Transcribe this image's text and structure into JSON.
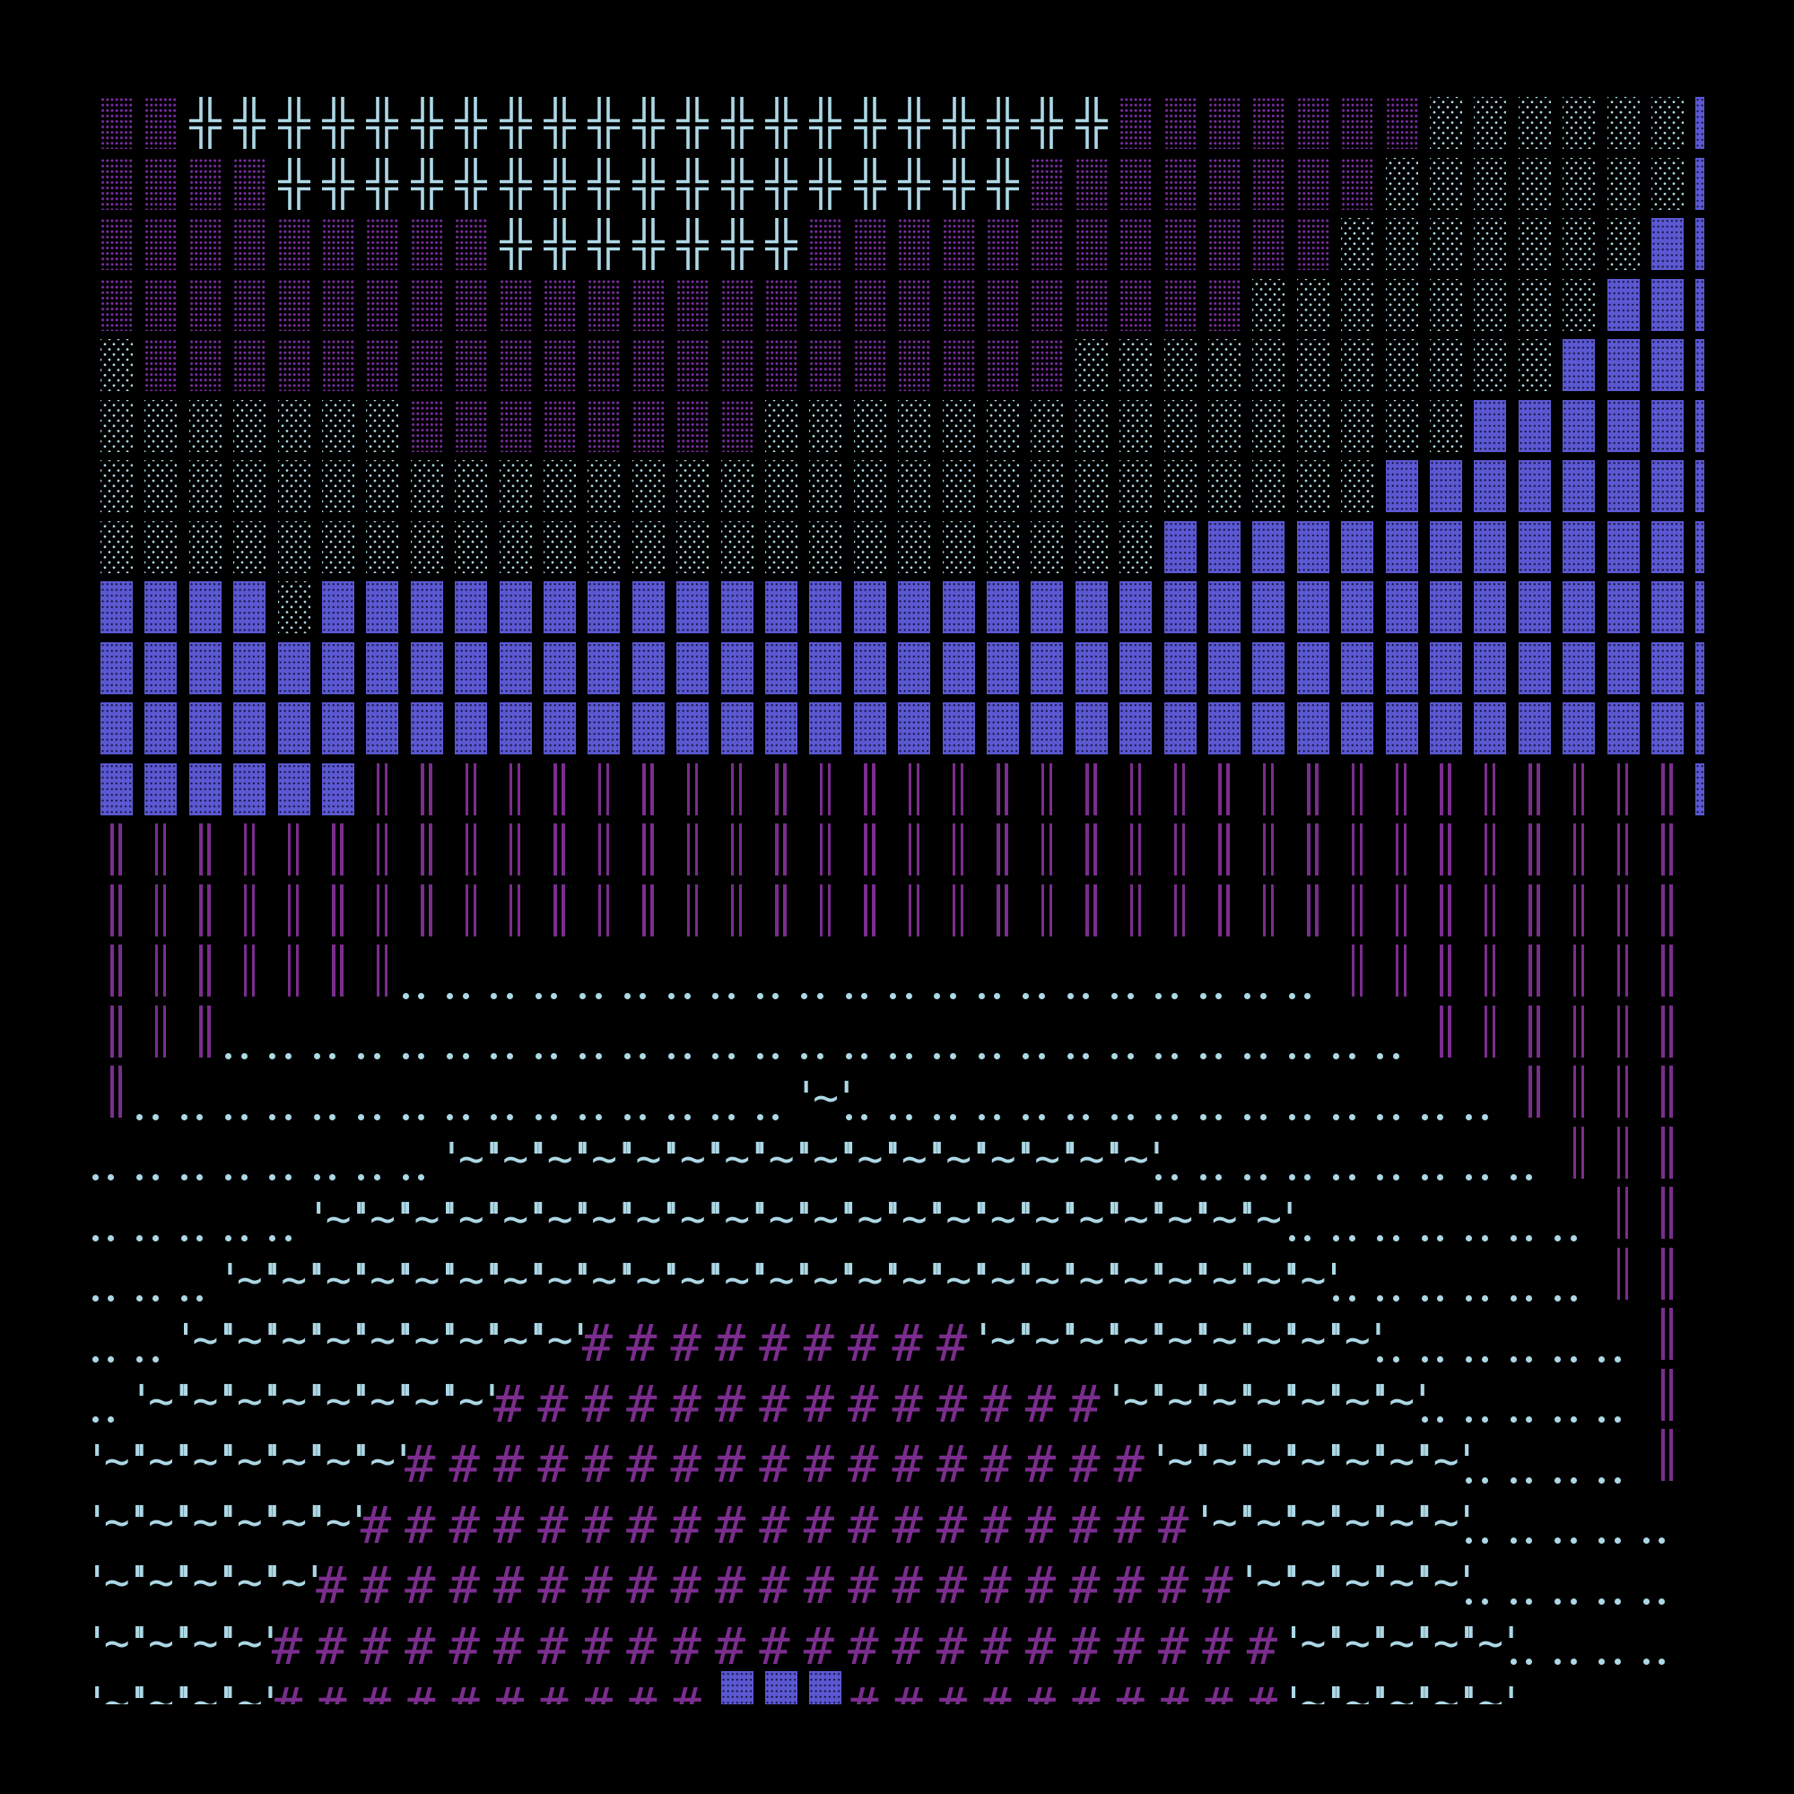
{
  "background": "#000000",
  "legend": {
    "P": {
      "name": "medium-shade",
      "glyph": "▒",
      "color": "#7d2ea5"
    },
    "X": {
      "name": "double-cross",
      "glyph": "╬",
      "color": "#add8e6"
    },
    "S": {
      "name": "light-shade",
      "glyph": "░",
      "color": "#add8e6"
    },
    "B": {
      "name": "dark-shade",
      "glyph": "▓",
      "color": "#5b58d2"
    },
    "V": {
      "name": "double-vertical",
      "glyph": "║",
      "color": "#7b2d8e"
    },
    "D": {
      "name": "two-dot-leader",
      "glyph": "‥",
      "color": "#add8e6"
    },
    "W": {
      "name": "wave",
      "glyph": "'~'",
      "color": "#add8e6"
    },
    "H": {
      "name": "hash",
      "glyph": "#",
      "color": "#7b2d8e"
    },
    ".": {
      "name": "empty",
      "glyph": " ",
      "color": "#000000"
    }
  },
  "rows": [
    "PPXXXXXXXXXXXXXXXXXXXXXPPPPPPPSSSSSSB",
    "PPPPXXXXXXXXXXXXXXXXXPPPPPPPPSSSSSSSB",
    "PPPPPPPPPXXXXXXXPPPPPPPPPPPPSSSSSSSBB",
    "PPPPPPPPPPPPPPPPPPPPPPPPPPSSSSSSSSBBB",
    "SPPPPPPPPPPPPPPPPPPPPPSSSSSSSSSSSBBBB",
    "SSSSSSSPPPPPPPPSSSSSSSSSSSSSSSSBBBBBB",
    "SSSSSSSSSSSSSSSSSSSSSSSSSSSSSBBBBBBBB",
    "SSSSSSSSSSSSSSSSSSSSSSSSBBBBBBBBBBBBB",
    "BBBBSBBBBBBBBBBBBBBBBBBBBBBBBBBBBBBBB",
    "BBBBBBBBBBBBBBBBBBBBBBBBBBBBBBBBBBBBB",
    "BBBBBBBBBBBBBBBBBBBBBBBBBBBBBBBBBBBBB",
    "BBBBBBVVVVVVVVVVVVVVVVVVVVVVVVVVVVVVB",
    "VVVVVVVVVVVVVVVVVVVVVVVVVVVVVVVVVVVV.",
    "VVVVVVVVVVVVVVVVVVVVVVVVVVVVVVVVVVVV.",
    "VVVVVVVDDDDDDDDDDDDDDDDDDDDDVVVVVVVV.",
    "VVVDDDDDDDDDDDDDDDDDDDDDDDDDDDVVVVVV.",
    "VDDDDDDDDDDDDDDDWDDDDDDDDDDDDDDDVVVV.",
    "DDDDDDDDWWWWWWWWWWWWWWWWDDDDDDDDDVVV.",
    "DDDDDWWWWWWWWWWWWWWWWWWWWWWDDDDDDDVV.",
    "DDDWWWWWWWWWWWWWWWWWWWWWWWWWDDDDDDVV.",
    "DDWWWWWWWWWHHHHHHHHHWWWWWWWWWDDDDDDV.",
    "DWWWWWWWWHHHHHHHHHHHHHHWWWWWWWDDDDDV.",
    "WWWWWWWHHHHHHHHHHHHHHHHHWWWWWWWDDDDV.",
    "WWWWWWHHHHHHHHHHHHHHHHHHHWWWWWWDDDDD.",
    "WWWWWHHHHHHHHHHHHHHHHHHHHHWWWWWDDDDD.",
    "WWWWHHHHHHHHHHHHHHHHHHHHHHHWWWWWDDDD.",
    "WWWWHHHHHHHHHHBBBHHHHHHHHHHWWWWWDDDD."
  ]
}
